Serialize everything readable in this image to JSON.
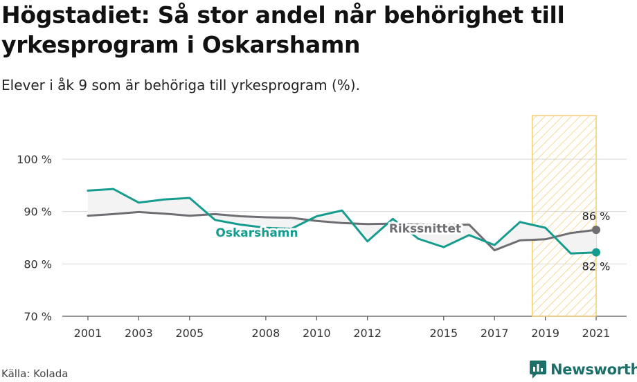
{
  "title": "Högstadiet: Så stor andel når behörighet till yrkesprogram i Oskarshamn",
  "subtitle": "Elever i åk 9 som är behöriga till yrkesprogram (%).",
  "source": "Källa: Kolada",
  "brand": "Newsworthy",
  "colors": {
    "oskarshamn": "#169c8e",
    "riksnittet": "#6f6e73",
    "highlight_stroke": "#f2c96d",
    "band_fill": "#f3f3f3",
    "grid": "#d6d6d6",
    "brand": "#1d6f6a"
  },
  "chart_data": {
    "type": "line",
    "x": [
      2001,
      2002,
      2003,
      2004,
      2005,
      2006,
      2007,
      2008,
      2009,
      2010,
      2011,
      2012,
      2013,
      2014,
      2015,
      2016,
      2017,
      2018,
      2019,
      2020,
      2021
    ],
    "series": [
      {
        "name": "Oskarshamn",
        "values": [
          94.0,
          94.3,
          91.7,
          92.3,
          92.6,
          88.4,
          87.5,
          86.9,
          86.7,
          89.1,
          90.2,
          84.3,
          88.6,
          84.8,
          83.2,
          85.5,
          83.6,
          88.0,
          86.9,
          82.0,
          82.2
        ],
        "end_label": "82 %"
      },
      {
        "name": "Rikssnittet",
        "values": [
          89.2,
          89.5,
          89.9,
          89.6,
          89.2,
          89.5,
          89.1,
          88.9,
          88.8,
          88.2,
          87.8,
          87.6,
          87.7,
          87.5,
          87.4,
          87.5,
          82.6,
          84.5,
          84.7,
          85.9,
          86.5
        ],
        "end_label": "86 %"
      }
    ],
    "series_labels": [
      "Oskarshamn",
      "Rikssnittet"
    ],
    "x_ticks": [
      2001,
      2003,
      2005,
      2008,
      2010,
      2012,
      2015,
      2017,
      2019,
      2021
    ],
    "y_ticks": [
      70,
      80,
      90,
      100
    ],
    "y_tick_labels": [
      "70 %",
      "80 %",
      "90 %",
      "100 %"
    ],
    "ylim": [
      70,
      103
    ],
    "highlight_range": [
      2019,
      2021
    ],
    "grid": true,
    "xlabel": "",
    "ylabel": ""
  }
}
